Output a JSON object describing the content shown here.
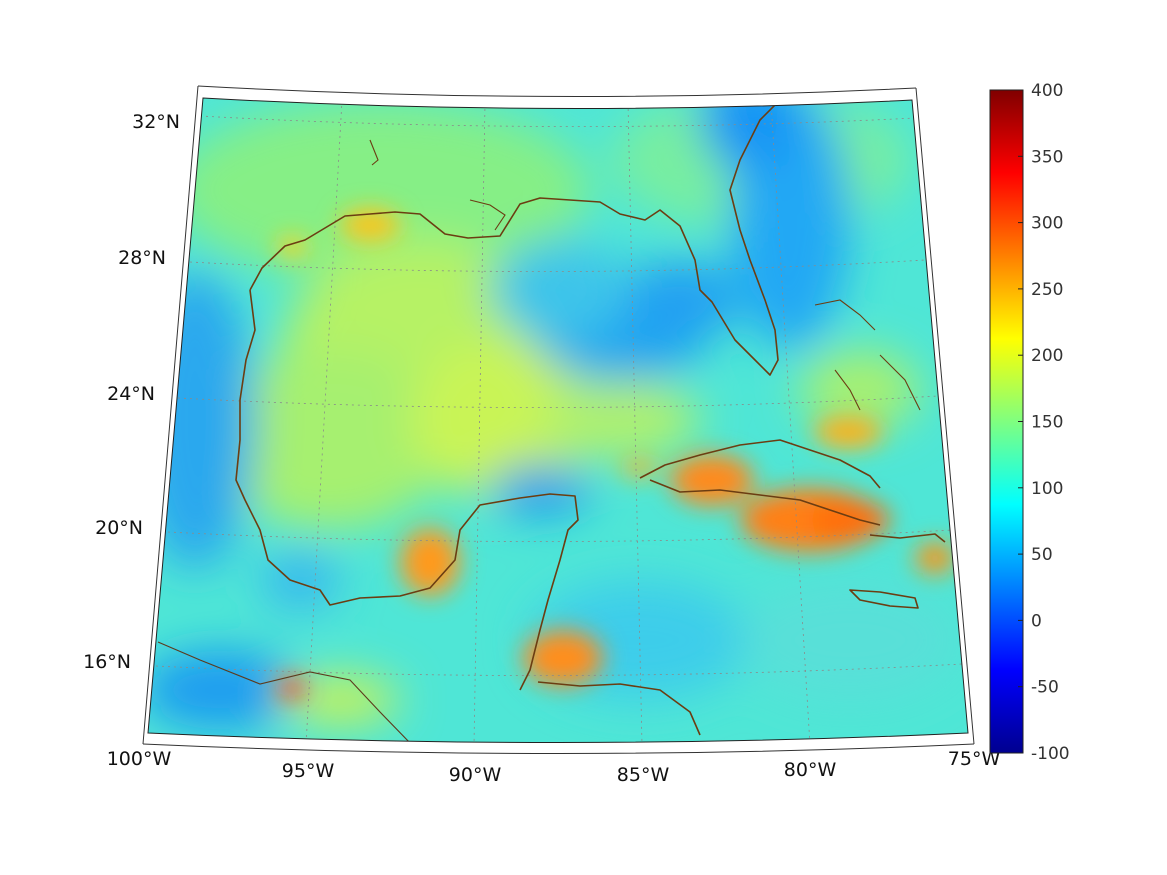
{
  "map": {
    "lat_labels": [
      {
        "value": 32,
        "label": "32°N"
      },
      {
        "value": 28,
        "label": "28°N"
      },
      {
        "value": 24,
        "label": "24°N"
      },
      {
        "value": 20,
        "label": "20°N"
      },
      {
        "value": 16,
        "label": "16°N"
      }
    ],
    "lon_labels": [
      {
        "value": -100,
        "label": "100°W"
      },
      {
        "value": -95,
        "label": "95°W"
      },
      {
        "value": -90,
        "label": "90°W"
      },
      {
        "value": -85,
        "label": "85°W"
      },
      {
        "value": -80,
        "label": "80°W"
      },
      {
        "value": -75,
        "label": "75°W"
      }
    ],
    "extent": {
      "lon": [
        -100,
        -75
      ],
      "lat": [
        14,
        33
      ]
    }
  },
  "colorbar": {
    "colormap": "jet",
    "range": [
      -100,
      400
    ],
    "ticks": [
      "400",
      "350",
      "300",
      "250",
      "200",
      "150",
      "100",
      "50",
      "0",
      "-50",
      "-100"
    ]
  }
}
